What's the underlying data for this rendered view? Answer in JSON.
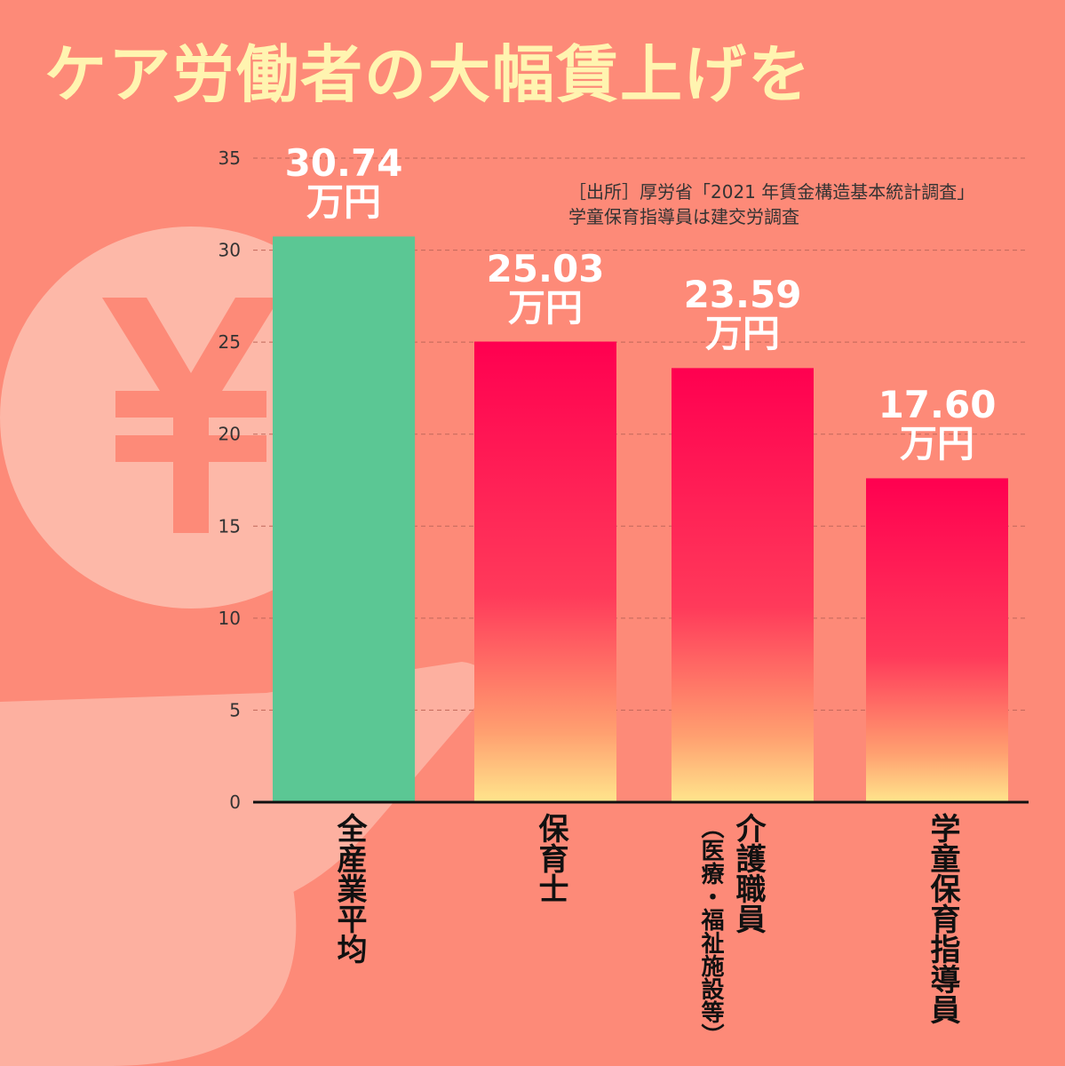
{
  "chart_data": {
    "type": "bar",
    "title": "ケア労働者の大幅賃上げを",
    "source_lines": [
      "［出所］厚労省「2021 年賃金構造基本統計調査」",
      "学童保育指導員は建交労調査"
    ],
    "categories": [
      "全産業平均",
      "保育士",
      "介護職員",
      "学童保育指導員"
    ],
    "category_subtitles": [
      null,
      null,
      "（医療・福祉施設等）",
      null
    ],
    "values": [
      30.74,
      25.03,
      23.59,
      17.6
    ],
    "value_labels": [
      "30.74万円",
      "25.03万円",
      "23.59万円",
      "17.60万円"
    ],
    "colors": [
      "#5bc794",
      "gradient",
      "gradient",
      "gradient"
    ],
    "ylim": [
      0,
      35
    ],
    "yticks": [
      0,
      5,
      10,
      15,
      20,
      25,
      30,
      35
    ],
    "grid": true
  }
}
